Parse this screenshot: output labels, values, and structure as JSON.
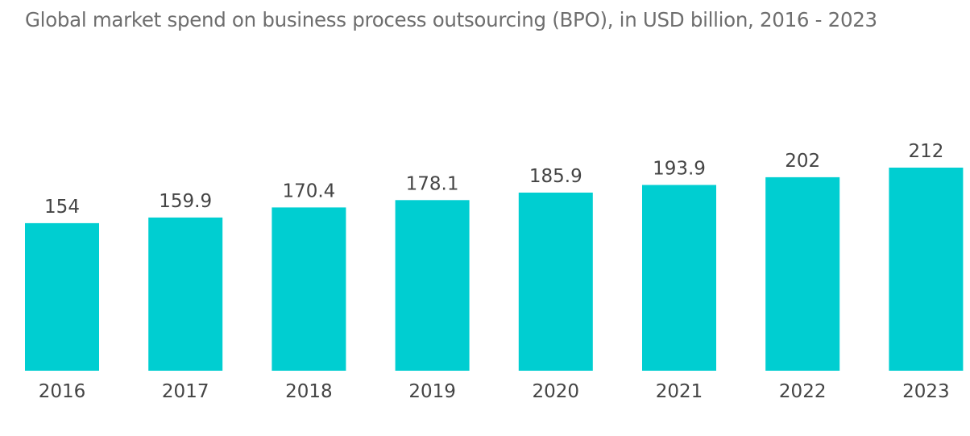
{
  "chart_data": {
    "type": "bar",
    "title": "Global market spend on business process outsourcing (BPO), in USD billion, 2016 - 2023",
    "categories": [
      "2016",
      "2017",
      "2018",
      "2019",
      "2020",
      "2021",
      "2022",
      "2023"
    ],
    "values": [
      154,
      159.9,
      170.4,
      178.1,
      185.9,
      193.9,
      202,
      212
    ],
    "value_labels": [
      "154",
      "159.9",
      "170.4",
      "178.1",
      "185.9",
      "193.9",
      "202",
      "212"
    ],
    "xlabel": "",
    "ylabel": "",
    "ylim": [
      0,
      212
    ],
    "grid": false,
    "legend": "none",
    "bar_color": "#00ced1"
  }
}
